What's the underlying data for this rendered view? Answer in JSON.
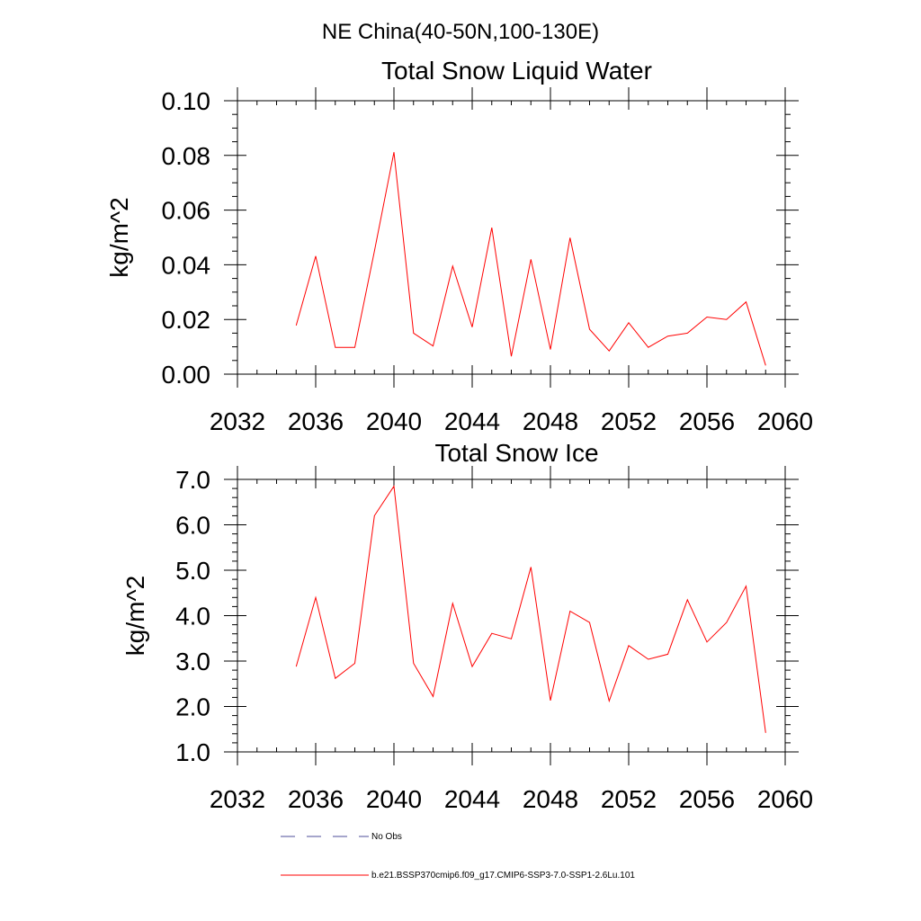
{
  "figure": {
    "suptitle": "NE China(40-50N,100-130E)",
    "legend": [
      {
        "label": "No Obs",
        "color": "#4d4d99",
        "style": "dashed"
      },
      {
        "label": "b.e21.BSSP370cmip6.f09_g17.CMIP6-SSP3-7.0-SSP1-2.6Lu.101",
        "color": "#ff0000",
        "style": "solid"
      }
    ]
  },
  "chart_data": [
    {
      "type": "line",
      "title": "Total Snow Liquid Water",
      "xlabel": "",
      "ylabel": "kg/m^2",
      "xlim": [
        2032,
        2060
      ],
      "ylim": [
        0.0,
        0.1
      ],
      "xticks": [
        2032,
        2036,
        2040,
        2044,
        2048,
        2052,
        2056,
        2060
      ],
      "xtick_labels": [
        "2032",
        "2036",
        "2040",
        "2044",
        "2048",
        "2052",
        "2056",
        "2060"
      ],
      "yticks": [
        0.0,
        0.02,
        0.04,
        0.06,
        0.08,
        0.1
      ],
      "ytick_labels": [
        "0.00",
        "0.02",
        "0.04",
        "0.06",
        "0.08",
        "0.10"
      ],
      "grid": false,
      "series": [
        {
          "name": "b.e21.BSSP370cmip6.f09_g17.CMIP6-SSP3-7.0-SSP1-2.6Lu.101",
          "color": "#ff0000",
          "x": [
            2035,
            2036,
            2037,
            2038,
            2039,
            2040,
            2041,
            2042,
            2043,
            2044,
            2045,
            2046,
            2047,
            2048,
            2049,
            2050,
            2051,
            2052,
            2053,
            2054,
            2055,
            2056,
            2057,
            2058,
            2059
          ],
          "y": [
            0.0178,
            0.0432,
            0.0098,
            0.0098,
            0.045,
            0.0812,
            0.015,
            0.0103,
            0.0395,
            0.0172,
            0.0536,
            0.0065,
            0.042,
            0.009,
            0.0499,
            0.0164,
            0.0085,
            0.0188,
            0.0098,
            0.0139,
            0.015,
            0.0209,
            0.02,
            0.0264,
            0.0032
          ]
        }
      ]
    },
    {
      "type": "line",
      "title": "Total Snow Ice",
      "xlabel": "",
      "ylabel": "kg/m^2",
      "xlim": [
        2032,
        2060
      ],
      "ylim": [
        1.0,
        7.0
      ],
      "xticks": [
        2032,
        2036,
        2040,
        2044,
        2048,
        2052,
        2056,
        2060
      ],
      "xtick_labels": [
        "2032",
        "2036",
        "2040",
        "2044",
        "2048",
        "2052",
        "2056",
        "2060"
      ],
      "yticks": [
        1.0,
        2.0,
        3.0,
        4.0,
        5.0,
        6.0,
        7.0
      ],
      "ytick_labels": [
        "1.0",
        "2.0",
        "3.0",
        "4.0",
        "5.0",
        "6.0",
        "7.0"
      ],
      "grid": false,
      "series": [
        {
          "name": "b.e21.BSSP370cmip6.f09_g17.CMIP6-SSP3-7.0-SSP1-2.6Lu.101",
          "color": "#ff0000",
          "x": [
            2035,
            2036,
            2037,
            2038,
            2039,
            2040,
            2041,
            2042,
            2043,
            2044,
            2045,
            2046,
            2047,
            2048,
            2049,
            2050,
            2051,
            2052,
            2053,
            2054,
            2055,
            2056,
            2057,
            2058,
            2059
          ],
          "y": [
            2.88,
            4.4,
            2.62,
            2.95,
            6.2,
            6.85,
            2.95,
            2.22,
            4.27,
            2.88,
            3.61,
            3.49,
            5.07,
            2.13,
            4.1,
            3.85,
            2.12,
            3.34,
            3.04,
            3.15,
            4.35,
            3.42,
            3.85,
            4.65,
            1.42
          ]
        }
      ]
    }
  ]
}
